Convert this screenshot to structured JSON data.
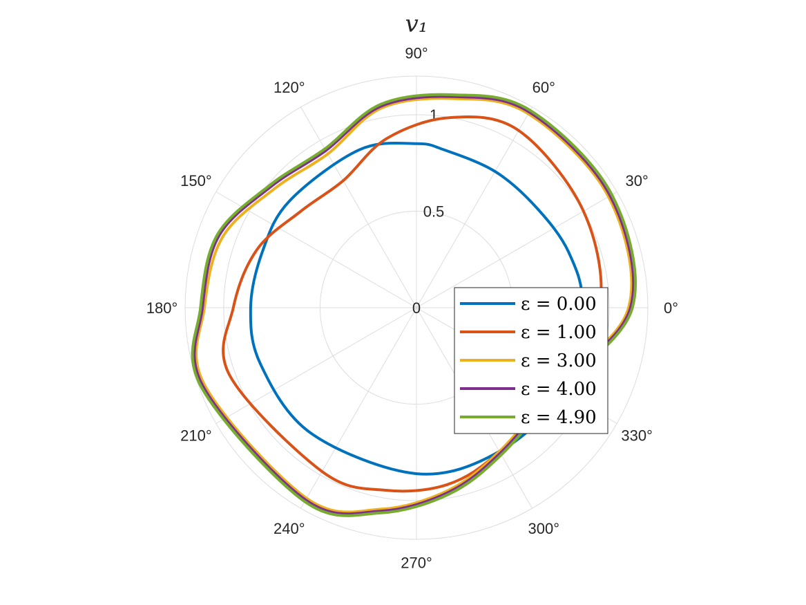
{
  "chart_data": {
    "type": "polar-line",
    "title": "v₁",
    "theta_unit": "degrees",
    "theta_ticks": [
      0,
      30,
      60,
      90,
      120,
      150,
      180,
      210,
      240,
      270,
      300,
      330
    ],
    "theta_tick_labels": [
      "0°",
      "30°",
      "60°",
      "90°",
      "120°",
      "150°",
      "180°",
      "210°",
      "240°",
      "270°",
      "300°",
      "330°"
    ],
    "r_ticks": [
      0,
      0.5,
      1
    ],
    "r_tick_labels": [
      "0",
      "0.5",
      "1"
    ],
    "rlim": [
      0,
      1.2
    ],
    "grid": true,
    "legend_position": "lower-right",
    "series": [
      {
        "name": "ε = 0.00",
        "color": "#0072BD",
        "points": [
          {
            "theta": 0,
            "r": 0.86
          },
          {
            "theta": 20,
            "r": 0.84
          },
          {
            "theta": 40,
            "r": 0.81
          },
          {
            "theta": 60,
            "r": 0.815
          },
          {
            "theta": 80,
            "r": 0.83
          },
          {
            "theta": 90,
            "r": 0.85
          },
          {
            "theta": 110,
            "r": 0.87
          },
          {
            "theta": 140,
            "r": 0.86
          },
          {
            "theta": 160,
            "r": 0.85
          },
          {
            "theta": 180,
            "r": 0.86
          },
          {
            "theta": 200,
            "r": 0.86
          },
          {
            "theta": 230,
            "r": 0.85
          },
          {
            "theta": 270,
            "r": 0.86
          },
          {
            "theta": 300,
            "r": 0.86
          },
          {
            "theta": 330,
            "r": 0.87
          },
          {
            "theta": 360,
            "r": 0.86
          }
        ]
      },
      {
        "name": "ε = 1.00",
        "color": "#D95319",
        "points": [
          {
            "theta": 0,
            "r": 0.95
          },
          {
            "theta": 30,
            "r": 1.0
          },
          {
            "theta": 60,
            "r": 1.06
          },
          {
            "theta": 80,
            "r": 1.0
          },
          {
            "theta": 100,
            "r": 0.89
          },
          {
            "theta": 120,
            "r": 0.76
          },
          {
            "theta": 140,
            "r": 0.78
          },
          {
            "theta": 160,
            "r": 0.88
          },
          {
            "theta": 180,
            "r": 0.95
          },
          {
            "theta": 200,
            "r": 1.03
          },
          {
            "theta": 240,
            "r": 0.98
          },
          {
            "theta": 260,
            "r": 0.96
          },
          {
            "theta": 280,
            "r": 0.93
          },
          {
            "theta": 300,
            "r": 0.86
          },
          {
            "theta": 330,
            "r": 0.82
          },
          {
            "theta": 360,
            "r": 0.95
          }
        ]
      },
      {
        "name": "ε = 3.00",
        "color": "#EDB120",
        "points": [
          {
            "theta": 0,
            "r": 1.1
          },
          {
            "theta": 30,
            "r": 1.15
          },
          {
            "theta": 60,
            "r": 1.16
          },
          {
            "theta": 80,
            "r": 1.1
          },
          {
            "theta": 100,
            "r": 1.05
          },
          {
            "theta": 120,
            "r": 0.92
          },
          {
            "theta": 140,
            "r": 0.96
          },
          {
            "theta": 160,
            "r": 1.07
          },
          {
            "theta": 180,
            "r": 1.1
          },
          {
            "theta": 200,
            "r": 1.17
          },
          {
            "theta": 240,
            "r": 1.14
          },
          {
            "theta": 260,
            "r": 1.06
          },
          {
            "theta": 280,
            "r": 0.96
          },
          {
            "theta": 300,
            "r": 0.86
          },
          {
            "theta": 330,
            "r": 0.83
          },
          {
            "theta": 360,
            "r": 1.1
          }
        ]
      },
      {
        "name": "ε = 4.00",
        "color": "#7E2F8E",
        "points": [
          {
            "theta": 0,
            "r": 1.11
          },
          {
            "theta": 30,
            "r": 1.16
          },
          {
            "theta": 60,
            "r": 1.17
          },
          {
            "theta": 80,
            "r": 1.11
          },
          {
            "theta": 100,
            "r": 1.06
          },
          {
            "theta": 120,
            "r": 0.94
          },
          {
            "theta": 140,
            "r": 0.98
          },
          {
            "theta": 160,
            "r": 1.09
          },
          {
            "theta": 180,
            "r": 1.11
          },
          {
            "theta": 200,
            "r": 1.18
          },
          {
            "theta": 240,
            "r": 1.15
          },
          {
            "theta": 260,
            "r": 1.07
          },
          {
            "theta": 280,
            "r": 0.97
          },
          {
            "theta": 300,
            "r": 0.87
          },
          {
            "theta": 330,
            "r": 0.84
          },
          {
            "theta": 360,
            "r": 1.11
          }
        ]
      },
      {
        "name": "ε = 4.90",
        "color": "#77AC30",
        "points": [
          {
            "theta": 0,
            "r": 1.12
          },
          {
            "theta": 30,
            "r": 1.17
          },
          {
            "theta": 60,
            "r": 1.18
          },
          {
            "theta": 80,
            "r": 1.12
          },
          {
            "theta": 100,
            "r": 1.07
          },
          {
            "theta": 120,
            "r": 0.95
          },
          {
            "theta": 140,
            "r": 0.99
          },
          {
            "theta": 160,
            "r": 1.1
          },
          {
            "theta": 180,
            "r": 1.12
          },
          {
            "theta": 200,
            "r": 1.19
          },
          {
            "theta": 240,
            "r": 1.16
          },
          {
            "theta": 260,
            "r": 1.08
          },
          {
            "theta": 280,
            "r": 0.98
          },
          {
            "theta": 300,
            "r": 0.88
          },
          {
            "theta": 330,
            "r": 0.85
          },
          {
            "theta": 360,
            "r": 1.12
          }
        ]
      }
    ]
  }
}
